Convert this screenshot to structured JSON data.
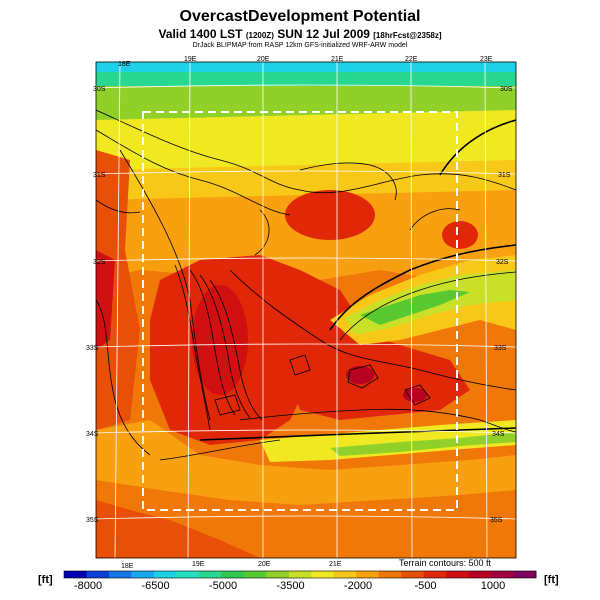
{
  "header": {
    "title": "OvercastDevelopment Potential",
    "valid_main": "Valid 1400 LST",
    "valid_code": "(1200Z)",
    "valid_date": "SUN 12 Jul 2009",
    "valid_fcst": "[18hrFcst@2358z]",
    "credit": "DrJack BLIPMAP from RASP 12km GFS-initialized WRF-ARW model"
  },
  "map": {
    "lon_labels_top": [
      "18E",
      "19E",
      "20E",
      "21E",
      "22E",
      "23E"
    ],
    "lon_labels_bottom": [
      "18E",
      "19E",
      "20E",
      "21E"
    ],
    "lat_labels_left": [
      "30S",
      "31S",
      "32S",
      "33S",
      "34S",
      "35S"
    ],
    "lat_labels_right": [
      "30S",
      "31S",
      "32S",
      "33S",
      "34S",
      "35S"
    ],
    "terrain_note": "Terrain contours: 500 ft"
  },
  "colorbar": {
    "unit_left": "[ft]",
    "unit_right": "[ft]",
    "tick_labels": [
      "-8000",
      "-6500",
      "-5000",
      "-3500",
      "-2000",
      "-500",
      "1000"
    ],
    "colors": [
      "#0000b0",
      "#0a3fd6",
      "#1576e8",
      "#18a8f0",
      "#1ed0e8",
      "#25e0c0",
      "#28d890",
      "#30c850",
      "#58c830",
      "#90d028",
      "#c8e028",
      "#f0e820",
      "#f8c818",
      "#f8a010",
      "#f07808",
      "#e85008",
      "#e02808",
      "#d01010",
      "#b80020",
      "#a00040",
      "#800060"
    ]
  }
}
